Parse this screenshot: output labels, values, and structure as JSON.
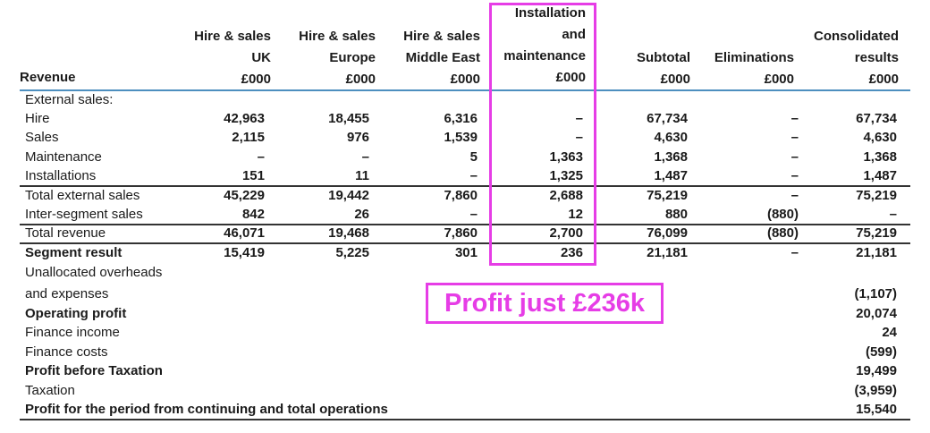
{
  "colors": {
    "accent": "#e63de6",
    "rule": "#4d8fbf"
  },
  "headers": [
    {
      "lines": [
        "",
        "Hire & sales",
        "UK",
        "£000"
      ]
    },
    {
      "lines": [
        "",
        "Hire & sales",
        "Europe",
        "£000"
      ]
    },
    {
      "lines": [
        "",
        "Hire & sales",
        "Middle East",
        "£000"
      ]
    },
    {
      "lines": [
        "Installation",
        "and",
        "maintenance",
        "£000"
      ]
    },
    {
      "lines": [
        "",
        "",
        "Subtotal",
        "£000"
      ]
    },
    {
      "lines": [
        "",
        "",
        "Eliminations",
        "£000"
      ]
    },
    {
      "lines": [
        "",
        "Consolidated",
        "results",
        "£000"
      ]
    }
  ],
  "revenue_label": "Revenue",
  "rows": [
    {
      "label": "External sales:",
      "values": [
        "",
        "",
        "",
        "",
        "",
        "",
        ""
      ],
      "bold": false
    },
    {
      "label": "Hire",
      "values": [
        "42,963",
        "18,455",
        "6,316",
        "–",
        "67,734",
        "–",
        "67,734"
      ],
      "bold": false
    },
    {
      "label": "Sales",
      "values": [
        "2,115",
        "976",
        "1,539",
        "–",
        "4,630",
        "–",
        "4,630"
      ],
      "bold": false
    },
    {
      "label": "Maintenance",
      "values": [
        "–",
        "–",
        "5",
        "1,363",
        "1,368",
        "–",
        "1,368"
      ],
      "bold": false
    },
    {
      "label": "Installations",
      "values": [
        "151",
        "11",
        "–",
        "1,325",
        "1,487",
        "–",
        "1,487"
      ],
      "bold": false
    },
    {
      "label": "Total external sales",
      "values": [
        "45,229",
        "19,442",
        "7,860",
        "2,688",
        "75,219",
        "–",
        "75,219"
      ],
      "bold": false
    },
    {
      "label": "Inter-segment sales",
      "values": [
        "842",
        "26",
        "–",
        "12",
        "880",
        "(880)",
        "–"
      ],
      "bold": false
    },
    {
      "label": "Total revenue",
      "values": [
        "46,071",
        "19,468",
        "7,860",
        "2,700",
        "76,099",
        "(880)",
        "75,219"
      ],
      "bold": false
    },
    {
      "label": "Segment result",
      "values": [
        "15,419",
        "5,225",
        "301",
        "236",
        "21,181",
        "–",
        "21,181"
      ],
      "bold": true
    },
    {
      "label": "Unallocated overheads",
      "values": [
        "",
        "",
        "",
        "",
        "",
        "",
        ""
      ],
      "bold": false
    },
    {
      "label": "and expenses",
      "values": [
        "",
        "",
        "",
        "",
        "",
        "",
        "(1,107)"
      ],
      "bold": false
    },
    {
      "label": "Operating profit",
      "values": [
        "",
        "",
        "",
        "",
        "",
        "",
        "20,074"
      ],
      "bold": true
    },
    {
      "label": "Finance income",
      "values": [
        "",
        "",
        "",
        "",
        "",
        "",
        "24"
      ],
      "bold": false
    },
    {
      "label": "Finance costs",
      "values": [
        "",
        "",
        "",
        "",
        "",
        "",
        "(599)"
      ],
      "bold": false
    },
    {
      "label": "Profit before Taxation",
      "values": [
        "",
        "",
        "",
        "",
        "",
        "",
        "19,499"
      ],
      "bold": true
    },
    {
      "label": "Taxation",
      "values": [
        "",
        "",
        "",
        "",
        "",
        "",
        "(3,959)"
      ],
      "bold": false
    },
    {
      "label": "Profit for the period from continuing and total operations",
      "values": [
        "",
        "",
        "",
        "",
        "",
        "",
        "15,540"
      ],
      "bold": true
    }
  ],
  "callout": {
    "text": "Profit just £236k"
  }
}
